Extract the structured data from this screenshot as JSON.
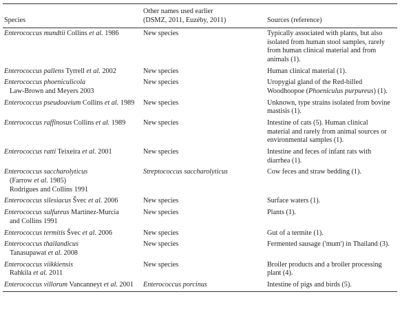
{
  "table": {
    "headers": [
      [
        "Species"
      ],
      [
        "Other names used earlier",
        "(DSMZ, 2011, Euzéby, 2011)"
      ],
      [
        "Sources (reference)"
      ]
    ],
    "rows": [
      [
        [
          [
            {
              "italic": "Enterococcus mundtii"
            },
            " Collins ",
            {
              "italic": "et al."
            },
            " 1986"
          ]
        ],
        [
          [
            "New species"
          ]
        ],
        [
          [
            "Typically associated with plants, but also"
          ],
          [
            "isolated from human stool samples, rarely"
          ],
          [
            "from human clinical material and from"
          ],
          [
            "animals (1)."
          ]
        ]
      ],
      [
        [
          [
            {
              "italic": "Enterococcus pallens"
            },
            " Tyrrell ",
            {
              "italic": "et al."
            },
            " 2002"
          ]
        ],
        [
          [
            "New species"
          ]
        ],
        [
          [
            "Human clinical material (1)."
          ]
        ]
      ],
      [
        [
          [
            {
              "italic": "Enterococcus phoeniculicola"
            }
          ],
          [
            "Law-Brown and Meyers 2003"
          ]
        ],
        [
          [
            "New species"
          ]
        ],
        [
          [
            "Uropygial gland of the Red-billed"
          ],
          [
            "Woodhoopoe (",
            {
              "italic": "Phoeniculus purpureus"
            },
            ") (1)."
          ]
        ]
      ],
      [
        [
          [
            {
              "italic": "Enterococcus pseudoavium"
            },
            " Collins ",
            {
              "italic": "et al."
            },
            " 1989"
          ]
        ],
        [
          [
            "New species"
          ]
        ],
        [
          [
            "Unknown, type strains isolated from bovine"
          ],
          [
            "mastisis (1)."
          ]
        ]
      ],
      [
        [
          [
            {
              "italic": "Enterococcus raffinosus"
            },
            " Collins ",
            {
              "italic": "et al."
            },
            " 1989"
          ]
        ],
        [
          [
            "New species"
          ]
        ],
        [
          [
            "Intestine of cats (5). Human clinical"
          ],
          [
            "material and rarely from animal sources or"
          ],
          [
            "environmental samples (1)."
          ]
        ]
      ],
      [
        [
          [
            {
              "italic": "Enterococcus ratti"
            },
            " Teixeira ",
            {
              "italic": "et al."
            },
            " 2001"
          ]
        ],
        [
          [
            "New species"
          ]
        ],
        [
          [
            "Intestine and feces of infant rats with"
          ],
          [
            "diarrhea (1)."
          ]
        ]
      ],
      [
        [
          [
            {
              "italic": "Enterococcus saccharolyticus"
            }
          ],
          [
            "(Farrow ",
            {
              "italic": "et al."
            },
            " 1985)"
          ],
          [
            "Rodrigues and Collins 1991"
          ]
        ],
        [
          [
            {
              "italic": "Streptococcus saccharolyticus"
            }
          ]
        ],
        [
          [
            "Cow feces and straw bedding (1)."
          ]
        ]
      ],
      [
        [
          [
            {
              "italic": "Enterococcus silesiacus"
            },
            " Švec ",
            {
              "italic": "et al."
            },
            " 2006"
          ]
        ],
        [
          [
            "New species"
          ]
        ],
        [
          [
            "Surface waters (1)."
          ]
        ]
      ],
      [
        [
          [
            {
              "italic": "Enterococcus sulfureus"
            },
            " Martinez-Murcia"
          ],
          [
            "and Collins 1991"
          ]
        ],
        [
          [
            "New species"
          ]
        ],
        [
          [
            "Plants (1)."
          ]
        ]
      ],
      [
        [
          [
            {
              "italic": "Enterococcus termitis"
            },
            " Švec ",
            {
              "italic": "et al."
            },
            " 2006"
          ]
        ],
        [
          [
            "New species"
          ]
        ],
        [
          [
            "Gut of a termite (1)."
          ]
        ]
      ],
      [
        [
          [
            {
              "italic": "Enterococcus thailandicus"
            }
          ],
          [
            "Tanasupawat ",
            {
              "italic": "et al."
            },
            " 2008"
          ]
        ],
        [
          [
            "New species"
          ]
        ],
        [
          [
            "Fermented sausage ('mum') in Thailand (3)."
          ]
        ]
      ],
      [
        [
          [
            {
              "italic": "Enterococcus viikkiensis"
            }
          ],
          [
            "Rahkila ",
            {
              "italic": "et al."
            },
            " 2011"
          ]
        ],
        [
          [
            "New species"
          ]
        ],
        [
          [
            "Broiler products and a broiler processing"
          ],
          [
            "plant (4)."
          ]
        ]
      ],
      [
        [
          [
            {
              "italic": "Enterococcus villorum"
            },
            " Vancanneyt ",
            {
              "italic": "et al."
            },
            " 2001"
          ]
        ],
        [
          [
            {
              "italic": "Enterococcus porcinus"
            }
          ]
        ],
        [
          [
            "Intestine of pigs and birds (5)."
          ]
        ]
      ]
    ]
  }
}
